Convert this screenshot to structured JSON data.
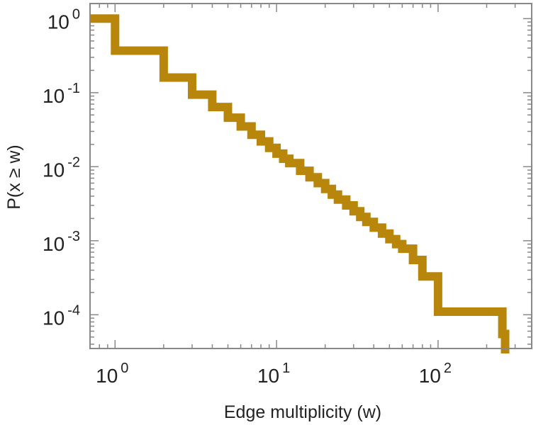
{
  "chart_data": {
    "type": "line",
    "step": true,
    "title": "",
    "xlabel": "Edge multiplicity (w)",
    "ylabel": "P(x ≥ w)",
    "xscale": "log",
    "yscale": "log",
    "xlim": [
      0.7,
      380
    ],
    "ylim": [
      3.5e-05,
      1.6
    ],
    "grid": false,
    "legend": "none",
    "series_color": "#b8860b",
    "x_ticks": [
      {
        "base": "10",
        "exp": "0",
        "value": 1
      },
      {
        "base": "10",
        "exp": "1",
        "value": 10
      },
      {
        "base": "10",
        "exp": "2",
        "value": 100
      }
    ],
    "y_ticks": [
      {
        "base": "10",
        "exp": "0",
        "value": 1
      },
      {
        "base": "10",
        "exp": "-1",
        "value": 0.1
      },
      {
        "base": "10",
        "exp": "-2",
        "value": 0.01
      },
      {
        "base": "10",
        "exp": "-3",
        "value": 0.001
      },
      {
        "base": "10",
        "exp": "-4",
        "value": 0.0001
      }
    ],
    "series": [
      {
        "x": [
          0.7,
          1,
          2,
          3,
          4,
          5,
          6,
          7,
          8,
          9,
          10,
          11,
          12,
          14,
          16,
          18,
          20,
          22,
          24,
          27,
          30,
          33,
          36,
          40,
          45,
          50,
          55,
          60,
          70,
          80,
          100,
          250,
          260
        ],
        "y": [
          1,
          0.37,
          0.16,
          0.094,
          0.064,
          0.046,
          0.035,
          0.027,
          0.022,
          0.018,
          0.015,
          0.0128,
          0.0112,
          0.0088,
          0.0072,
          0.006,
          0.005,
          0.0042,
          0.0036,
          0.003,
          0.0025,
          0.0021,
          0.0018,
          0.0015,
          0.00125,
          0.00105,
          0.0009,
          0.00078,
          0.00055,
          0.00033,
          0.00011,
          5.5e-05,
          3e-05
        ]
      }
    ]
  }
}
